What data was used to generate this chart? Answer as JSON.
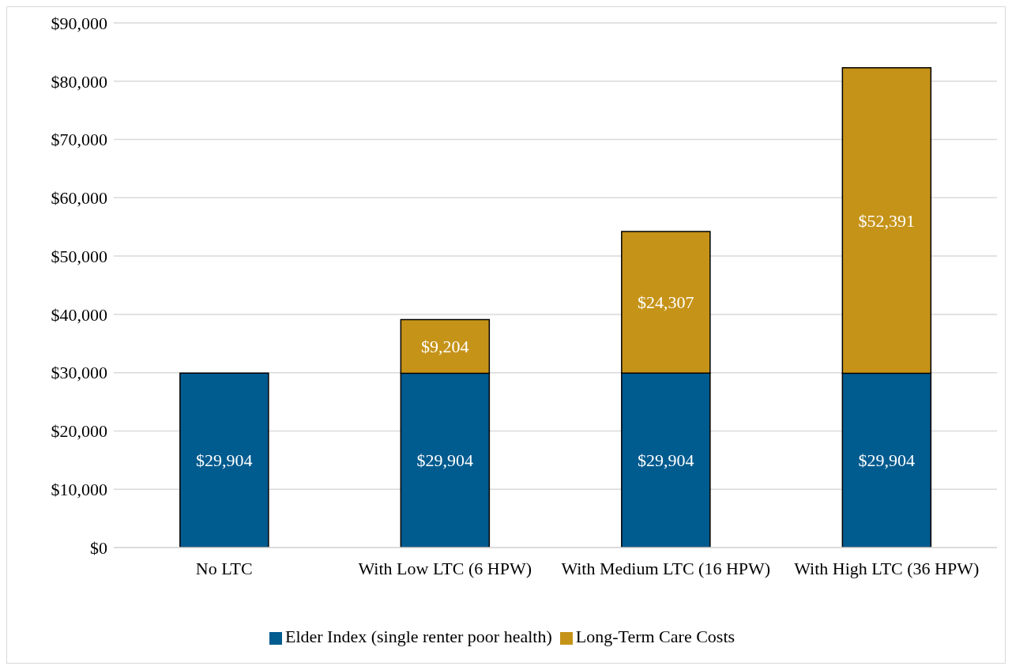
{
  "chart_data": {
    "type": "bar",
    "stacked": true,
    "categories": [
      "No LTC",
      "With Low LTC (6 HPW)",
      "With Medium LTC (16 HPW)",
      "With High LTC (36 HPW)"
    ],
    "series": [
      {
        "name": "Elder Index (single renter poor health)",
        "color": "#005b8f",
        "values": [
          29904,
          29904,
          29904,
          29904
        ],
        "value_labels": [
          "$29,904",
          "$29,904",
          "$29,904",
          "$29,904"
        ]
      },
      {
        "name": "Long-Term Care Costs",
        "color": "#c59318",
        "values": [
          null,
          9204,
          24307,
          52391
        ],
        "value_labels": [
          null,
          "$9,204",
          "$24,307",
          "$52,391"
        ]
      }
    ],
    "ylim": [
      0,
      90000
    ],
    "yticks": [
      {
        "value": 0,
        "label": "$0"
      },
      {
        "value": 10000,
        "label": "$10,000"
      },
      {
        "value": 20000,
        "label": "$20,000"
      },
      {
        "value": 30000,
        "label": "$30,000"
      },
      {
        "value": 40000,
        "label": "$40,000"
      },
      {
        "value": 50000,
        "label": "$50,000"
      },
      {
        "value": 60000,
        "label": "$60,000"
      },
      {
        "value": 70000,
        "label": "$70,000"
      },
      {
        "value": 80000,
        "label": "$80,000"
      },
      {
        "value": 90000,
        "label": "$90,000"
      }
    ],
    "grid": "y",
    "legend": "bottom"
  }
}
